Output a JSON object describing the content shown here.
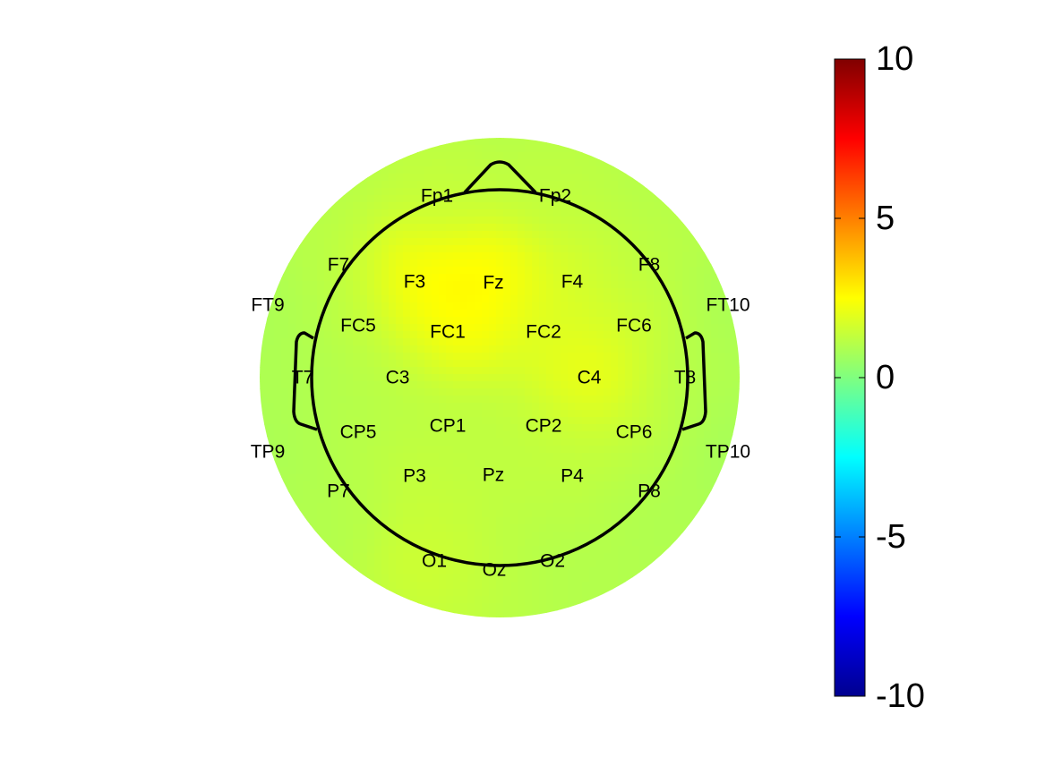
{
  "chart_data": {
    "type": "heatmap",
    "subtype": "scalp-topography",
    "colormap": "jet",
    "clim": [
      -10,
      10
    ],
    "colorbar": {
      "placement": "right",
      "tick_values": [
        10,
        5,
        0,
        -5,
        -10
      ],
      "tick_labels": [
        "10",
        "5",
        "0",
        "-5",
        "-10"
      ]
    },
    "background_value": 1.0,
    "electrodes": [
      {
        "name": "Fp1",
        "value": 1.4
      },
      {
        "name": "Fp2",
        "value": 1.3
      },
      {
        "name": "F7",
        "value": 1.2
      },
      {
        "name": "F3",
        "value": 3.0
      },
      {
        "name": "Fz",
        "value": 3.1
      },
      {
        "name": "F4",
        "value": 1.8
      },
      {
        "name": "F8",
        "value": 1.2
      },
      {
        "name": "FT9",
        "value": 0.8
      },
      {
        "name": "FT10",
        "value": 0.8
      },
      {
        "name": "FC5",
        "value": 1.2
      },
      {
        "name": "FC1",
        "value": 2.8
      },
      {
        "name": "FC2",
        "value": 1.8
      },
      {
        "name": "FC6",
        "value": 1.6
      },
      {
        "name": "T7",
        "value": 0.9
      },
      {
        "name": "C3",
        "value": 1.1
      },
      {
        "name": "C4",
        "value": 2.8
      },
      {
        "name": "T8",
        "value": 1.0
      },
      {
        "name": "TP9",
        "value": 0.8
      },
      {
        "name": "TP10",
        "value": 0.7
      },
      {
        "name": "CP5",
        "value": 1.1
      },
      {
        "name": "CP1",
        "value": 1.2
      },
      {
        "name": "CP2",
        "value": 1.3
      },
      {
        "name": "CP6",
        "value": 1.4
      },
      {
        "name": "P7",
        "value": 1.0
      },
      {
        "name": "P3",
        "value": 1.5
      },
      {
        "name": "Pz",
        "value": 1.3
      },
      {
        "name": "P4",
        "value": 1.3
      },
      {
        "name": "P8",
        "value": 0.9
      },
      {
        "name": "O1",
        "value": 1.7
      },
      {
        "name": "Oz",
        "value": 1.3
      },
      {
        "name": "O2",
        "value": 1.0
      }
    ]
  }
}
